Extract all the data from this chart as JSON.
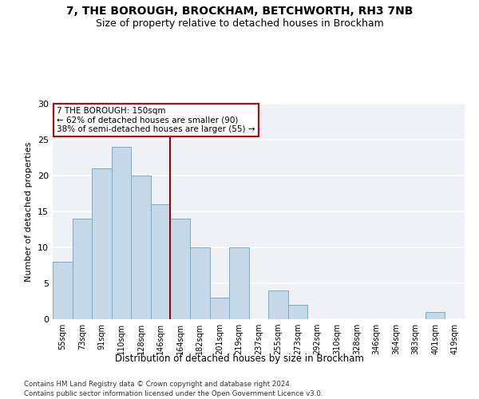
{
  "title1": "7, THE BOROUGH, BROCKHAM, BETCHWORTH, RH3 7NB",
  "title2": "Size of property relative to detached houses in Brockham",
  "xlabel": "Distribution of detached houses by size in Brockham",
  "ylabel": "Number of detached properties",
  "categories": [
    "55sqm",
    "73sqm",
    "91sqm",
    "110sqm",
    "128sqm",
    "146sqm",
    "164sqm",
    "182sqm",
    "201sqm",
    "219sqm",
    "237sqm",
    "255sqm",
    "273sqm",
    "292sqm",
    "310sqm",
    "328sqm",
    "346sqm",
    "364sqm",
    "383sqm",
    "401sqm",
    "419sqm"
  ],
  "values": [
    8,
    14,
    21,
    24,
    20,
    16,
    14,
    10,
    3,
    10,
    0,
    4,
    2,
    0,
    0,
    0,
    0,
    0,
    0,
    1,
    0
  ],
  "bar_color": "#c5d8e8",
  "bar_edge_color": "#7aaac8",
  "vline_x": 5.5,
  "vline_color": "#990000",
  "annotation_text": "7 THE BOROUGH: 150sqm\n← 62% of detached houses are smaller (90)\n38% of semi-detached houses are larger (55) →",
  "annotation_box_color": "white",
  "annotation_box_edge": "#cc0000",
  "ylim": [
    0,
    30
  ],
  "yticks": [
    0,
    5,
    10,
    15,
    20,
    25,
    30
  ],
  "footnote1": "Contains HM Land Registry data © Crown copyright and database right 2024.",
  "footnote2": "Contains public sector information licensed under the Open Government Licence v3.0.",
  "background_color": "#eef2f7"
}
